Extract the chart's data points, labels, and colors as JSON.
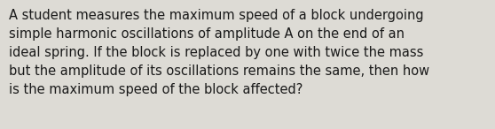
{
  "text": "A student measures the maximum speed of a block undergoing\nsimple harmonic oscillations of amplitude A on the end of an\nideal spring. If the block is replaced by one with twice the mass\nbut the amplitude of its oscillations remains the same, then how\nis the maximum speed of the block affected?",
  "background_color": "#dddbd5",
  "text_color": "#1a1a1a",
  "font_size": 10.5,
  "font_family": "DejaVu Sans",
  "fig_width": 5.58,
  "fig_height": 1.46,
  "dpi": 100
}
